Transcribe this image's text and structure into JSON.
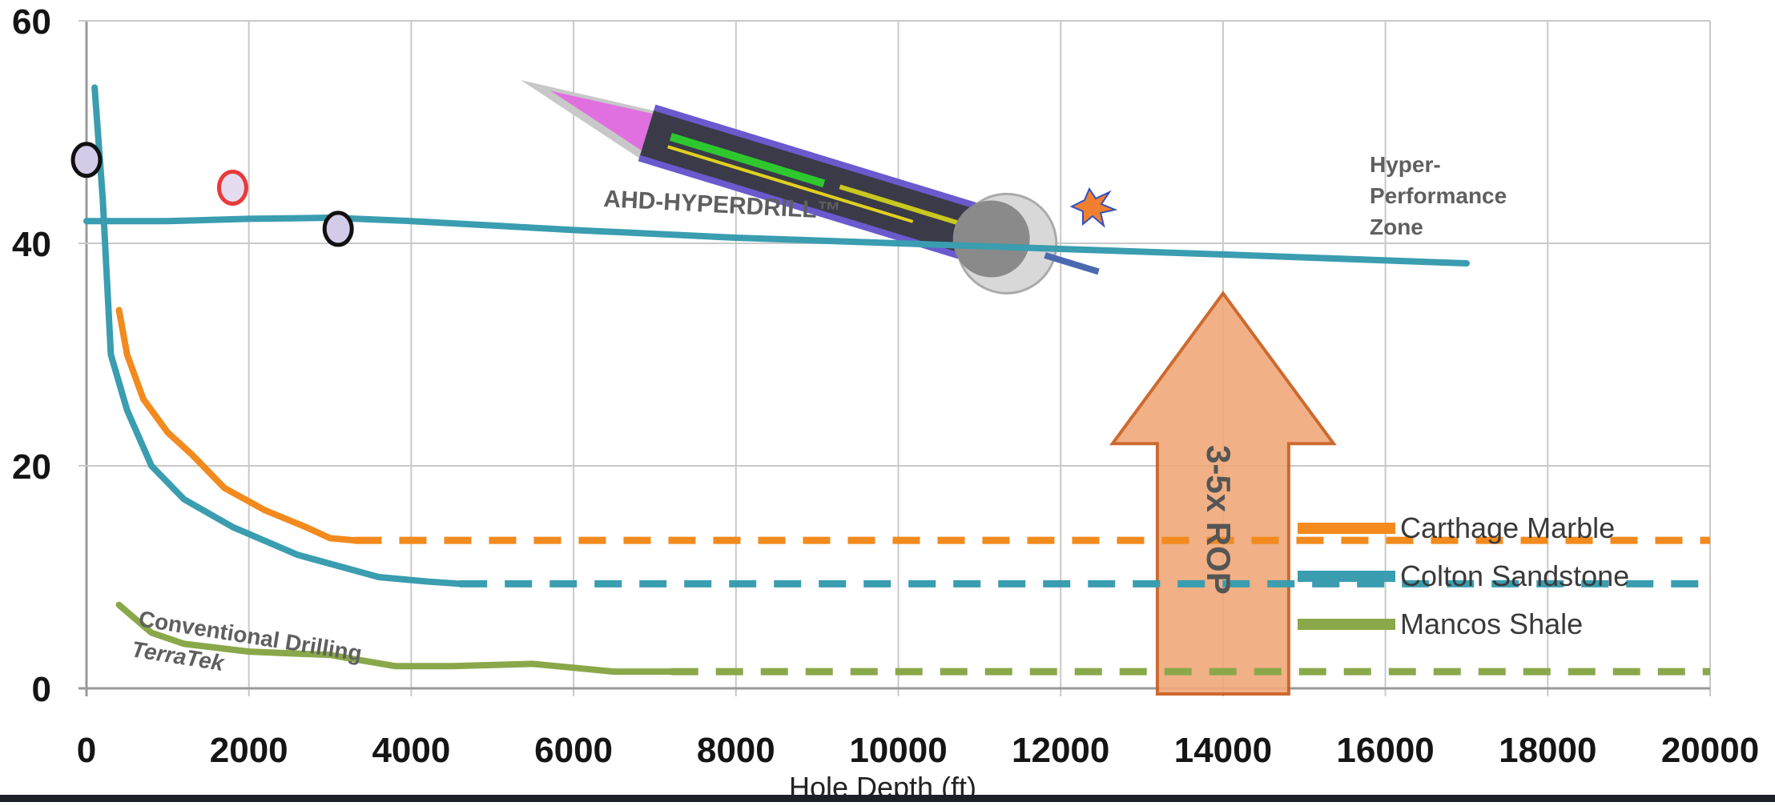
{
  "chart_data": {
    "type": "line",
    "xlabel": "Hole Depth (ft)",
    "ylabel": "",
    "xlim": [
      0,
      20000
    ],
    "ylim": [
      0,
      60
    ],
    "x_ticks": [
      "0",
      "2000",
      "4000",
      "6000",
      "8000",
      "10000",
      "12000",
      "14000",
      "16000",
      "18000",
      "20000"
    ],
    "y_ticks": [
      "0",
      "20",
      "40",
      "60"
    ],
    "grid": true,
    "legend_position": "bottom-right",
    "series": [
      {
        "name": "Carthage Marble",
        "color": "#f28a1e",
        "x": [
          400,
          500,
          700,
          1000,
          1300,
          1700,
          2200,
          2700,
          3000,
          3300
        ],
        "y": [
          34,
          30,
          26,
          23,
          21,
          18,
          16,
          14.5,
          13.5,
          13.3
        ],
        "dashed_x": [
          3300,
          20000
        ],
        "dashed_y": [
          13.3,
          13.3
        ]
      },
      {
        "name": "Colton Sandstone",
        "color": "#3a9db0",
        "x": [
          100,
          200,
          300,
          500,
          800,
          1200,
          1800,
          2600,
          3200,
          3600,
          4200,
          4600
        ],
        "y": [
          54,
          44,
          30,
          25,
          20,
          17,
          14.5,
          12,
          10.8,
          10,
          9.6,
          9.4
        ],
        "dashed_x": [
          4600,
          20000
        ],
        "dashed_y": [
          9.4,
          9.4
        ]
      },
      {
        "name": "Mancos Shale",
        "color": "#8aa84a",
        "x": [
          400,
          800,
          1200,
          2000,
          3000,
          3800,
          4500,
          5500,
          6500,
          7200
        ],
        "y": [
          7.5,
          5,
          4,
          3.3,
          3,
          2,
          2,
          2.2,
          1.5,
          1.5
        ],
        "dashed_x": [
          7200,
          20000
        ],
        "dashed_y": [
          1.5,
          1.5
        ]
      },
      {
        "name": "AHD-HYPERDRILL™",
        "color": "#3a9db0",
        "x": [
          0,
          1000,
          2000,
          3000,
          4000,
          6000,
          8000,
          10000,
          12000,
          14000,
          17000
        ],
        "y": [
          42,
          42,
          42.2,
          42.3,
          42,
          41.2,
          40.5,
          40,
          39.5,
          39,
          38.2
        ]
      }
    ],
    "markers": [
      {
        "x": 0,
        "y": 47.5,
        "fill": "#d4cbe8",
        "stroke": "#111111"
      },
      {
        "x": 1800,
        "y": 45,
        "fill": "#e5dcf0",
        "stroke": "#e83a3a"
      },
      {
        "x": 3100,
        "y": 41.3,
        "fill": "#d4cbe8",
        "stroke": "#111111"
      }
    ],
    "annotations": {
      "hyperdrill": "AHD-HYPERDRILL™",
      "hyper_1": "Hyper-",
      "hyper_2": "Performance",
      "hyper_3": "Zone",
      "conventional": "Conventional Drilling",
      "terratek": "TerraTek",
      "rop": "3-5x ROP"
    },
    "arrow": {
      "x_center": 14000,
      "y_base": -0.5,
      "y_tip": 35.5,
      "fill": "#f0a878",
      "stroke": "#c85a1a"
    },
    "tool_icon": "drill-bit-illustration"
  }
}
